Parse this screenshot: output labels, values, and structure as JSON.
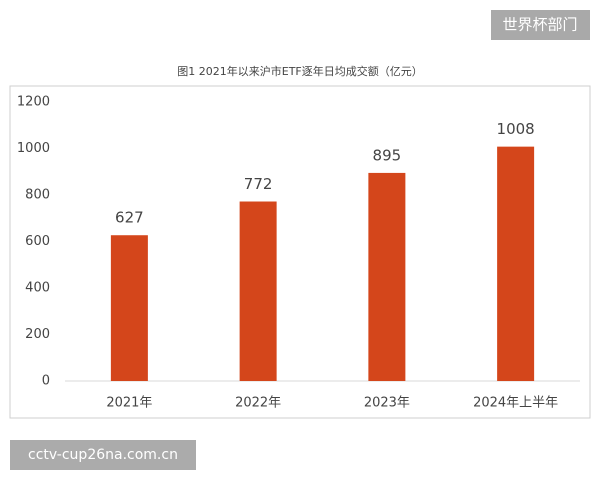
{
  "chart_data": {
    "type": "bar",
    "title": "图1 2021年以来沪市ETF逐年日均成交额（亿元）",
    "categories": [
      "2021年",
      "2022年",
      "2023年",
      "2024年上半年"
    ],
    "values": [
      627,
      772,
      895,
      1008
    ],
    "color": "#d4461b",
    "ylim": [
      0,
      1200
    ],
    "yticks": [
      0,
      200,
      400,
      600,
      800,
      1000,
      1200
    ],
    "grid": false,
    "show_value_labels": true
  },
  "overlay": {
    "top_badge": "世界杯部门",
    "bottom_badge": "cctv-cup26na.com.cn"
  }
}
